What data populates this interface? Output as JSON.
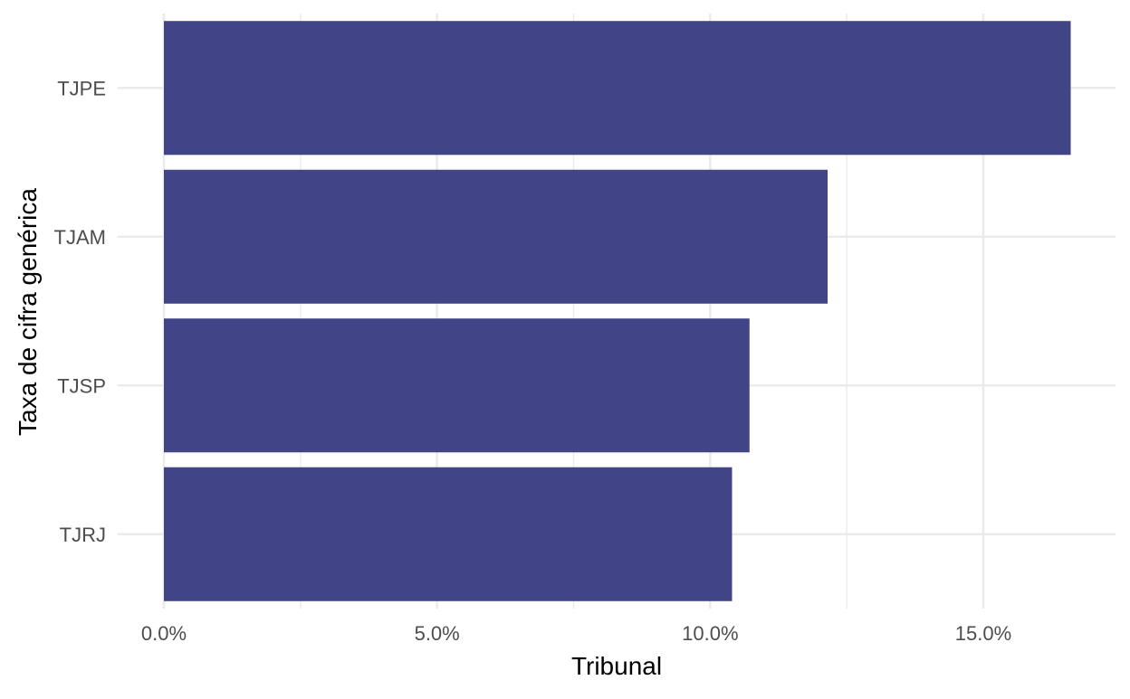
{
  "chart_data": {
    "type": "bar",
    "orientation": "horizontal",
    "categories": [
      "TJPE",
      "TJAM",
      "TJSP",
      "TJRJ"
    ],
    "values": [
      16.6,
      12.15,
      10.72,
      10.4
    ],
    "value_format": "percent",
    "xlabel": "Tribunal",
    "ylabel": "Taxa de cifra genérica",
    "xlim": [
      0,
      17.3
    ],
    "x_ticks": [
      0,
      5,
      10,
      15
    ],
    "x_tick_labels": [
      "0.0%",
      "5.0%",
      "10.0%",
      "15.0%"
    ],
    "grid": true,
    "legend": "none",
    "bar_color": "#414487"
  }
}
